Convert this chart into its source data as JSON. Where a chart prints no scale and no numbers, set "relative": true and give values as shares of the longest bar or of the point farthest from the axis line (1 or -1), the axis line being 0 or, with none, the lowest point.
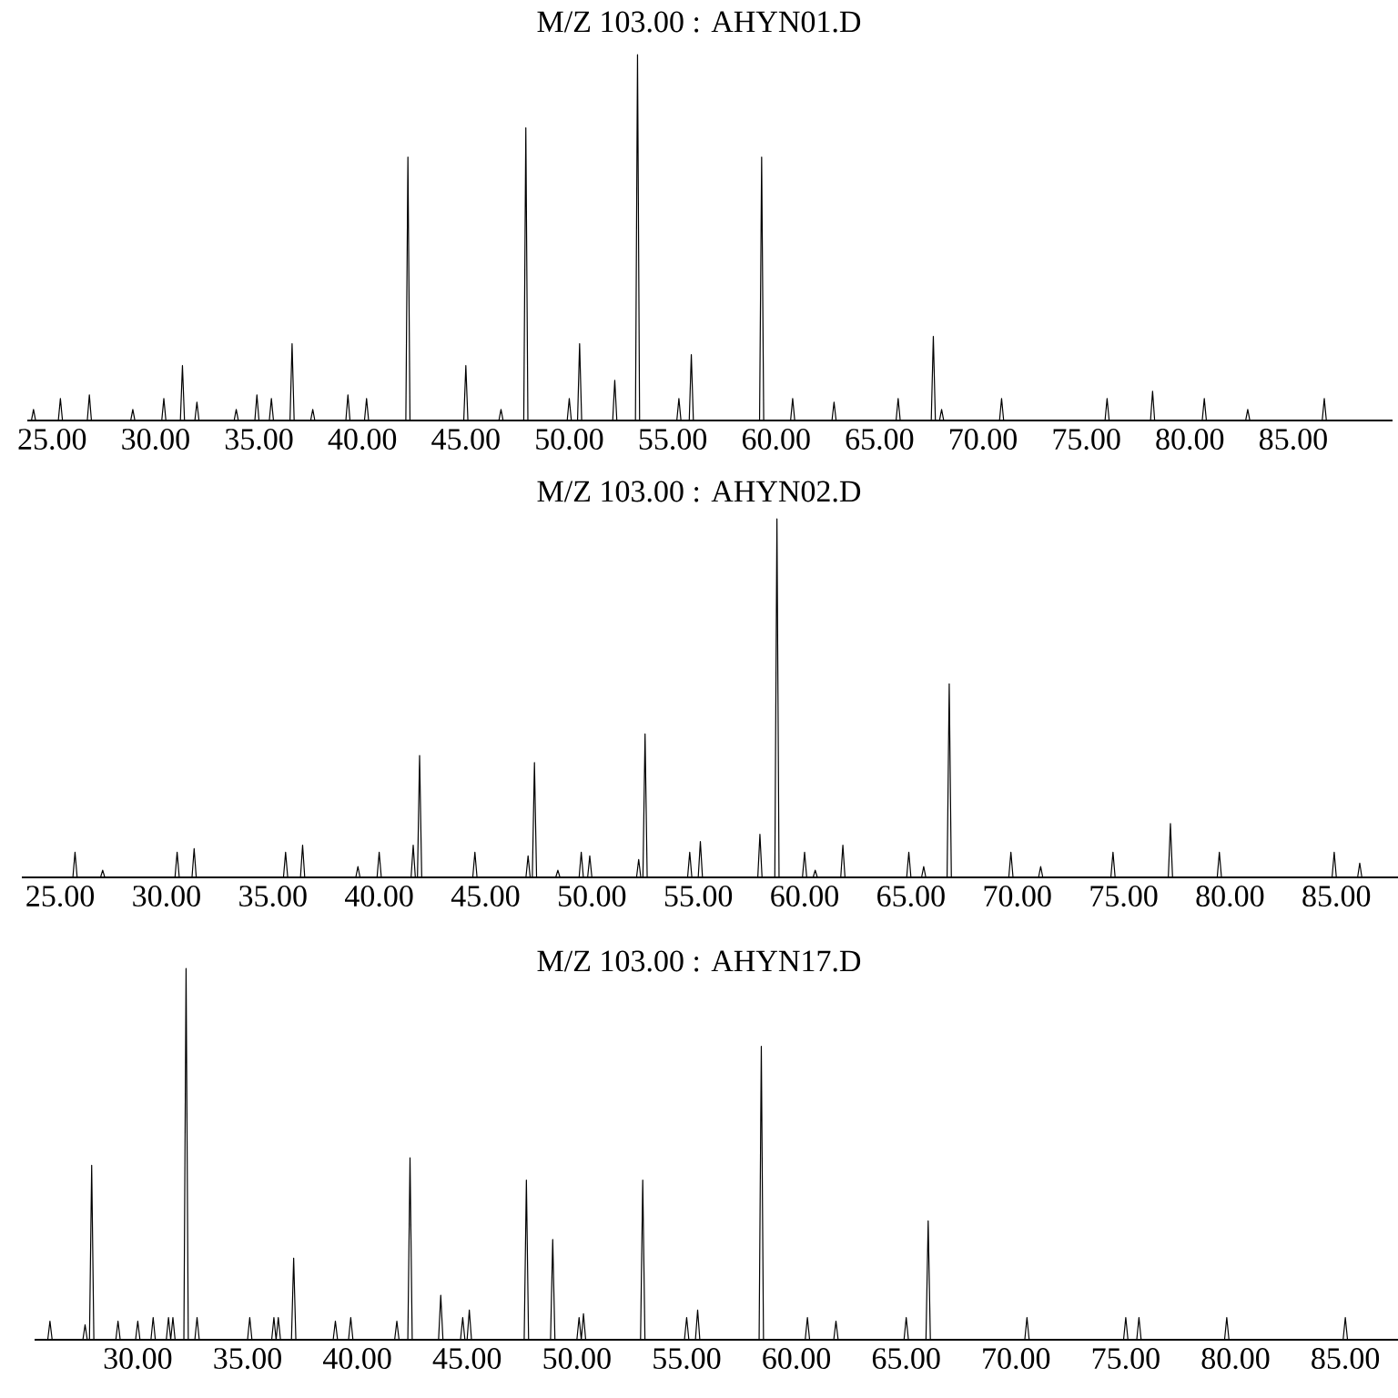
{
  "chart_data": [
    {
      "type": "line",
      "title": "M/Z 103.00 : AHYN01.D",
      "relative": true,
      "color": "#000000",
      "xlim": [
        23.8,
        89.8
      ],
      "xticks": [
        {
          "value": 25,
          "label": "25.00"
        },
        {
          "value": 30,
          "label": "30.00"
        },
        {
          "value": 35,
          "label": "35.00"
        },
        {
          "value": 40,
          "label": "40.00"
        },
        {
          "value": 45,
          "label": "45.00"
        },
        {
          "value": 50,
          "label": "50.00"
        },
        {
          "value": 55,
          "label": "55.00"
        },
        {
          "value": 60,
          "label": "60.00"
        },
        {
          "value": 65,
          "label": "65.00"
        },
        {
          "value": 70,
          "label": "70.00"
        },
        {
          "value": 75,
          "label": "75.00"
        },
        {
          "value": 80,
          "label": "80.00"
        },
        {
          "value": 85,
          "label": "85.00"
        }
      ],
      "x": [
        24.0,
        24.1,
        24.2,
        25.3,
        25.4,
        25.5,
        26.7,
        26.8,
        26.9,
        28.8,
        28.9,
        29.0,
        30.3,
        30.4,
        30.5,
        31.2,
        31.3,
        31.4,
        31.9,
        32.0,
        32.1,
        33.8,
        33.9,
        34.0,
        34.8,
        34.9,
        35.0,
        35.5,
        35.6,
        35.7,
        36.5,
        36.6,
        36.7,
        37.5,
        37.6,
        37.7,
        39.2,
        39.3,
        39.4,
        40.1,
        40.2,
        40.3,
        42.1,
        42.2,
        42.3,
        44.9,
        45.0,
        45.1,
        46.6,
        46.7,
        46.8,
        47.8,
        47.9,
        48.0,
        49.9,
        50.0,
        50.1,
        50.4,
        50.5,
        50.6,
        52.1,
        52.2,
        52.3,
        53.2,
        53.3,
        53.4,
        55.2,
        55.3,
        55.4,
        55.8,
        55.9,
        56.0,
        59.2,
        59.3,
        59.4,
        60.7,
        60.8,
        60.9,
        62.7,
        62.8,
        62.9,
        65.8,
        65.9,
        66.0,
        67.5,
        67.6,
        67.7,
        67.9,
        68.0,
        68.1,
        70.8,
        70.9,
        71.0,
        75.9,
        76.0,
        76.1,
        78.1,
        78.2,
        78.3,
        80.6,
        80.7,
        80.8,
        82.7,
        82.8,
        82.9,
        86.4,
        86.5,
        86.6
      ],
      "values": [
        0,
        0.03,
        0,
        0,
        0.06,
        0,
        0,
        0.07,
        0,
        0,
        0.03,
        0,
        0,
        0.06,
        0,
        0,
        0.15,
        0,
        0,
        0.05,
        0,
        0,
        0.03,
        0,
        0,
        0.07,
        0,
        0,
        0.06,
        0,
        0,
        0.21,
        0,
        0,
        0.03,
        0,
        0,
        0.07,
        0,
        0,
        0.06,
        0,
        0,
        0.72,
        0,
        0,
        0.15,
        0,
        0,
        0.03,
        0,
        0,
        0.8,
        0,
        0,
        0.06,
        0,
        0,
        0.21,
        0,
        0,
        0.11,
        0,
        0,
        1,
        0,
        0,
        0.06,
        0,
        0,
        0.18,
        0,
        0,
        0.72,
        0,
        0,
        0.06,
        0,
        0,
        0.05,
        0,
        0,
        0.06,
        0,
        0,
        0.23,
        0,
        0,
        0.03,
        0,
        0,
        0.06,
        0,
        0,
        0.06,
        0,
        0,
        0.08,
        0,
        0,
        0.06,
        0,
        0,
        0.03,
        0,
        0,
        0.06,
        0
      ]
    },
    {
      "type": "line",
      "title": "M/Z 103.00 : AHYN02.D",
      "relative": true,
      "color": "#000000",
      "xlim": [
        23.2,
        87.9
      ],
      "xticks": [
        {
          "value": 25,
          "label": "25.00"
        },
        {
          "value": 30,
          "label": "30.00"
        },
        {
          "value": 35,
          "label": "35.00"
        },
        {
          "value": 40,
          "label": "40.00"
        },
        {
          "value": 45,
          "label": "45.00"
        },
        {
          "value": 50,
          "label": "50.00"
        },
        {
          "value": 55,
          "label": "55.00"
        },
        {
          "value": 60,
          "label": "60.00"
        },
        {
          "value": 65,
          "label": "65.00"
        },
        {
          "value": 70,
          "label": "70.00"
        },
        {
          "value": 75,
          "label": "75.00"
        },
        {
          "value": 80,
          "label": "80.00"
        },
        {
          "value": 85,
          "label": "85.00"
        }
      ],
      "x": [
        25.6,
        25.7,
        25.8,
        26.9,
        27.0,
        27.1,
        30.4,
        30.5,
        30.6,
        31.2,
        31.3,
        31.4,
        35.5,
        35.6,
        35.7,
        36.3,
        36.4,
        36.5,
        38.9,
        39.0,
        39.1,
        39.9,
        40.0,
        40.1,
        41.5,
        41.6,
        41.7,
        41.8,
        41.9,
        42.0,
        44.4,
        44.5,
        44.6,
        46.9,
        47.0,
        47.1,
        47.2,
        47.3,
        47.4,
        48.3,
        48.4,
        48.5,
        49.4,
        49.5,
        49.6,
        49.8,
        49.9,
        50.0,
        52.1,
        52.2,
        52.3,
        52.4,
        52.5,
        52.6,
        54.5,
        54.6,
        54.7,
        55.0,
        55.1,
        55.2,
        57.8,
        57.9,
        58.0,
        58.6,
        58.7,
        58.8,
        59.9,
        60.0,
        60.1,
        60.4,
        60.5,
        60.6,
        61.7,
        61.8,
        61.9,
        64.8,
        64.9,
        65.0,
        65.5,
        65.6,
        65.7,
        66.7,
        66.8,
        66.9,
        69.6,
        69.7,
        69.8,
        71.0,
        71.1,
        71.2,
        74.4,
        74.5,
        74.6,
        77.1,
        77.2,
        77.3,
        79.4,
        79.5,
        79.6,
        84.8,
        84.9,
        85.0,
        86.0,
        86.1,
        86.2
      ],
      "values": [
        0,
        0.07,
        0,
        0,
        0.02,
        0,
        0,
        0.07,
        0,
        0,
        0.08,
        0,
        0,
        0.07,
        0,
        0,
        0.09,
        0,
        0,
        0.03,
        0,
        0,
        0.07,
        0,
        0,
        0.09,
        0,
        0,
        0.34,
        0,
        0,
        0.07,
        0,
        0,
        0.06,
        0,
        0,
        0.32,
        0,
        0,
        0.02,
        0,
        0,
        0.07,
        0,
        0,
        0.06,
        0,
        0,
        0.05,
        0,
        0,
        0.4,
        0,
        0,
        0.07,
        0,
        0,
        0.1,
        0,
        0,
        0.12,
        0,
        0,
        1,
        0,
        0,
        0.07,
        0,
        0,
        0.02,
        0,
        0,
        0.09,
        0,
        0,
        0.07,
        0,
        0,
        0.03,
        0,
        0,
        0.54,
        0,
        0,
        0.07,
        0,
        0,
        0.03,
        0,
        0,
        0.07,
        0,
        0,
        0.15,
        0,
        0,
        0.07,
        0,
        0,
        0.07,
        0,
        0,
        0.04,
        0
      ]
    },
    {
      "type": "line",
      "title": "M/Z 103.00 : AHYN17.D",
      "relative": true,
      "color": "#000000",
      "xlim": [
        25.3,
        87.4
      ],
      "xticks": [
        {
          "value": 30,
          "label": "30.00"
        },
        {
          "value": 35,
          "label": "35.00"
        },
        {
          "value": 40,
          "label": "40.00"
        },
        {
          "value": 45,
          "label": "45.00"
        },
        {
          "value": 50,
          "label": "50.00"
        },
        {
          "value": 55,
          "label": "55.00"
        },
        {
          "value": 60,
          "label": "60.00"
        },
        {
          "value": 65,
          "label": "65.00"
        },
        {
          "value": 70,
          "label": "70.00"
        },
        {
          "value": 75,
          "label": "75.00"
        },
        {
          "value": 80,
          "label": "80.00"
        },
        {
          "value": 85,
          "label": "85.00"
        }
      ],
      "x": [
        25.9,
        26.0,
        26.1,
        27.5,
        27.6,
        27.7,
        27.8,
        27.9,
        28.0,
        29.0,
        29.1,
        29.2,
        29.9,
        30.0,
        30.1,
        30.6,
        30.7,
        30.8,
        31.3,
        31.4,
        31.5,
        31.5,
        31.6,
        31.7,
        32.1,
        32.2,
        32.3,
        32.6,
        32.7,
        32.8,
        35.0,
        35.1,
        35.2,
        36.1,
        36.2,
        36.3,
        36.3,
        36.4,
        36.5,
        37.0,
        37.1,
        37.2,
        38.9,
        39.0,
        39.1,
        39.6,
        39.7,
        39.8,
        41.7,
        41.8,
        41.9,
        42.3,
        42.4,
        42.5,
        43.7,
        43.8,
        43.9,
        44.7,
        44.8,
        44.9,
        45.0,
        45.1,
        45.2,
        47.6,
        47.7,
        47.8,
        48.8,
        48.9,
        49.0,
        50.0,
        50.1,
        50.2,
        50.2,
        50.3,
        50.4,
        52.9,
        53.0,
        53.1,
        54.9,
        55.0,
        55.1,
        55.4,
        55.5,
        55.6,
        58.3,
        58.4,
        58.5,
        60.4,
        60.5,
        60.6,
        61.7,
        61.8,
        61.9,
        64.9,
        65.0,
        65.1,
        65.9,
        66.0,
        66.1,
        70.4,
        70.5,
        70.6,
        74.9,
        75.0,
        75.1,
        75.5,
        75.6,
        75.7,
        79.5,
        79.6,
        79.7,
        84.9,
        85.0,
        85.1
      ],
      "values": [
        0,
        0.05,
        0,
        0,
        0.04,
        0,
        0,
        0.47,
        0,
        0,
        0.05,
        0,
        0,
        0.05,
        0,
        0,
        0.06,
        0,
        0,
        0.06,
        0,
        0,
        0.06,
        0,
        0,
        1,
        0,
        0,
        0.06,
        0,
        0,
        0.06,
        0,
        0,
        0.06,
        0,
        0,
        0.06,
        0,
        0,
        0.22,
        0,
        0,
        0.05,
        0,
        0,
        0.06,
        0,
        0,
        0.05,
        0,
        0,
        0.49,
        0,
        0,
        0.12,
        0,
        0,
        0.06,
        0,
        0,
        0.08,
        0,
        0,
        0.43,
        0,
        0,
        0.27,
        0,
        0,
        0.06,
        0,
        0,
        0.07,
        0,
        0,
        0.43,
        0,
        0,
        0.06,
        0,
        0,
        0.08,
        0,
        0,
        0.79,
        0,
        0,
        0.06,
        0,
        0,
        0.05,
        0,
        0,
        0.06,
        0,
        0,
        0.32,
        0,
        0,
        0.06,
        0,
        0,
        0.06,
        0,
        0,
        0.06,
        0,
        0,
        0.06,
        0,
        0,
        0.06,
        0
      ]
    }
  ]
}
